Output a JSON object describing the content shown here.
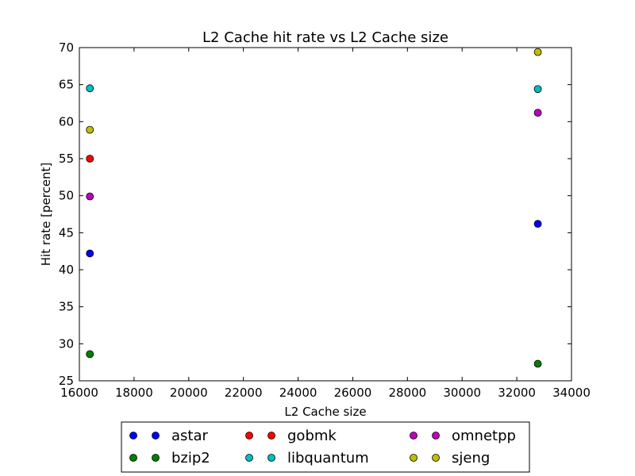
{
  "chart_data": {
    "type": "scatter",
    "title": "L2 Cache hit rate vs L2 Cache size",
    "xlabel": "L2 Cache size",
    "ylabel": "Hit rate [percent]",
    "xlim": [
      16000,
      34000
    ],
    "ylim": [
      25,
      70
    ],
    "xticks": [
      16000,
      18000,
      20000,
      22000,
      24000,
      26000,
      28000,
      30000,
      32000,
      34000
    ],
    "yticks": [
      25,
      30,
      35,
      40,
      45,
      50,
      55,
      60,
      65,
      70
    ],
    "grid": false,
    "legend_position": "below",
    "series": [
      {
        "name": "astar",
        "color": "#0000ff",
        "points": [
          {
            "x": 16384,
            "y": 42.2
          },
          {
            "x": 32768,
            "y": 46.2
          }
        ]
      },
      {
        "name": "bzip2",
        "color": "#007f00",
        "points": [
          {
            "x": 16384,
            "y": 28.6
          },
          {
            "x": 32768,
            "y": 27.3
          }
        ]
      },
      {
        "name": "gobmk",
        "color": "#ff0000",
        "points": [
          {
            "x": 16384,
            "y": 55.0
          }
        ]
      },
      {
        "name": "libquantum",
        "color": "#00bfbf",
        "points": [
          {
            "x": 16384,
            "y": 64.5
          },
          {
            "x": 32768,
            "y": 64.4
          }
        ]
      },
      {
        "name": "omnetpp",
        "color": "#bf00bf",
        "points": [
          {
            "x": 16384,
            "y": 49.9
          },
          {
            "x": 32768,
            "y": 61.2
          }
        ]
      },
      {
        "name": "sjeng",
        "color": "#bfbf00",
        "points": [
          {
            "x": 16384,
            "y": 58.9
          },
          {
            "x": 32768,
            "y": 69.4
          }
        ]
      }
    ]
  }
}
